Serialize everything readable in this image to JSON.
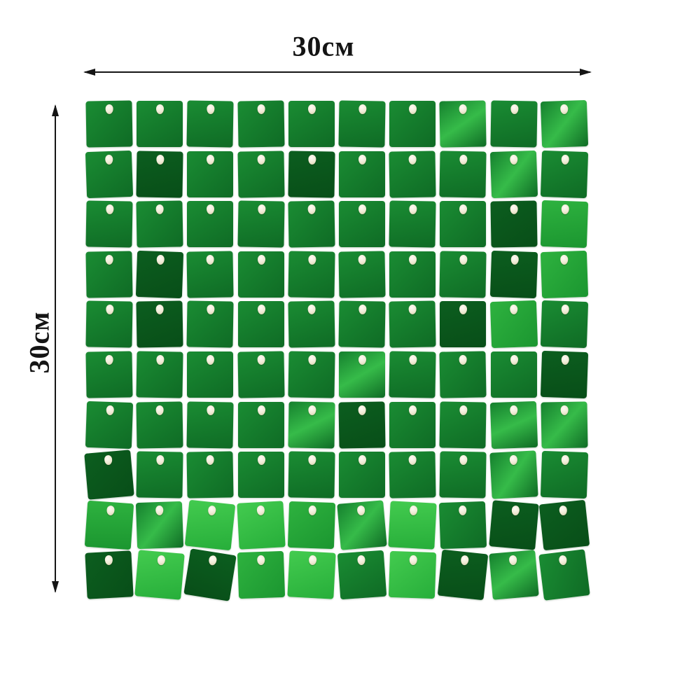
{
  "dimensions": {
    "width_label": "30см",
    "height_label": "30см",
    "arrow_color": "#151515",
    "label_color": "#141414"
  },
  "panel": {
    "rows": 10,
    "cols": 10,
    "background": "#ffffff",
    "pin_color": "#f5f1e0",
    "palette": [
      [
        "#0c5e1f",
        "#084e18"
      ],
      [
        "#1a8c33",
        "#0f6b25"
      ],
      [
        "#15802e",
        "#36bb49",
        "#0f6b25"
      ],
      [
        "#2eb23f",
        "#1b9630"
      ],
      [
        "#43cb4f",
        "#27ae3a"
      ]
    ],
    "tiles": [
      [
        1,
        -1
      ],
      [
        1,
        0
      ],
      [
        1,
        1
      ],
      [
        1,
        -1
      ],
      [
        1,
        0
      ],
      [
        1,
        1
      ],
      [
        1,
        0
      ],
      [
        2,
        -1
      ],
      [
        1,
        1
      ],
      [
        2,
        -2
      ],
      [
        1,
        -2
      ],
      [
        0,
        1
      ],
      [
        1,
        0
      ],
      [
        1,
        -1
      ],
      [
        0,
        1
      ],
      [
        1,
        0
      ],
      [
        1,
        -1
      ],
      [
        1,
        1
      ],
      [
        2,
        -2
      ],
      [
        1,
        2
      ],
      [
        1,
        1
      ],
      [
        1,
        -1
      ],
      [
        1,
        0
      ],
      [
        1,
        1
      ],
      [
        1,
        -1
      ],
      [
        1,
        0
      ],
      [
        1,
        1
      ],
      [
        1,
        0
      ],
      [
        0,
        -1
      ],
      [
        3,
        2
      ],
      [
        1,
        -1
      ],
      [
        0,
        2
      ],
      [
        1,
        -1
      ],
      [
        1,
        0
      ],
      [
        1,
        1
      ],
      [
        1,
        -1
      ],
      [
        1,
        0
      ],
      [
        1,
        1
      ],
      [
        0,
        2
      ],
      [
        3,
        -2
      ],
      [
        1,
        1
      ],
      [
        0,
        -1
      ],
      [
        1,
        1
      ],
      [
        1,
        0
      ],
      [
        1,
        -1
      ],
      [
        1,
        1
      ],
      [
        1,
        -1
      ],
      [
        0,
        0
      ],
      [
        3,
        -2
      ],
      [
        1,
        2
      ],
      [
        1,
        -1
      ],
      [
        1,
        1
      ],
      [
        1,
        0
      ],
      [
        1,
        -1
      ],
      [
        1,
        1
      ],
      [
        2,
        0
      ],
      [
        1,
        1
      ],
      [
        1,
        -1
      ],
      [
        1,
        0
      ],
      [
        0,
        2
      ],
      [
        1,
        2
      ],
      [
        1,
        -1
      ],
      [
        1,
        1
      ],
      [
        1,
        0
      ],
      [
        2,
        1
      ],
      [
        0,
        -1
      ],
      [
        1,
        0
      ],
      [
        1,
        1
      ],
      [
        2,
        -2
      ],
      [
        2,
        -1
      ],
      [
        0,
        -5
      ],
      [
        1,
        1
      ],
      [
        1,
        -1
      ],
      [
        1,
        0
      ],
      [
        1,
        1
      ],
      [
        1,
        0
      ],
      [
        1,
        -1
      ],
      [
        1,
        1
      ],
      [
        2,
        -3
      ],
      [
        1,
        2
      ],
      [
        3,
        4
      ],
      [
        2,
        -2
      ],
      [
        4,
        6
      ],
      [
        4,
        -3
      ],
      [
        3,
        2
      ],
      [
        2,
        -5
      ],
      [
        4,
        3
      ],
      [
        1,
        -2
      ],
      [
        0,
        5
      ],
      [
        0,
        -6
      ],
      [
        0,
        -3
      ],
      [
        4,
        5
      ],
      [
        0,
        9
      ],
      [
        3,
        -2
      ],
      [
        4,
        3
      ],
      [
        1,
        -4
      ],
      [
        4,
        2
      ],
      [
        0,
        6
      ],
      [
        2,
        -5
      ],
      [
        1,
        -7
      ]
    ]
  }
}
